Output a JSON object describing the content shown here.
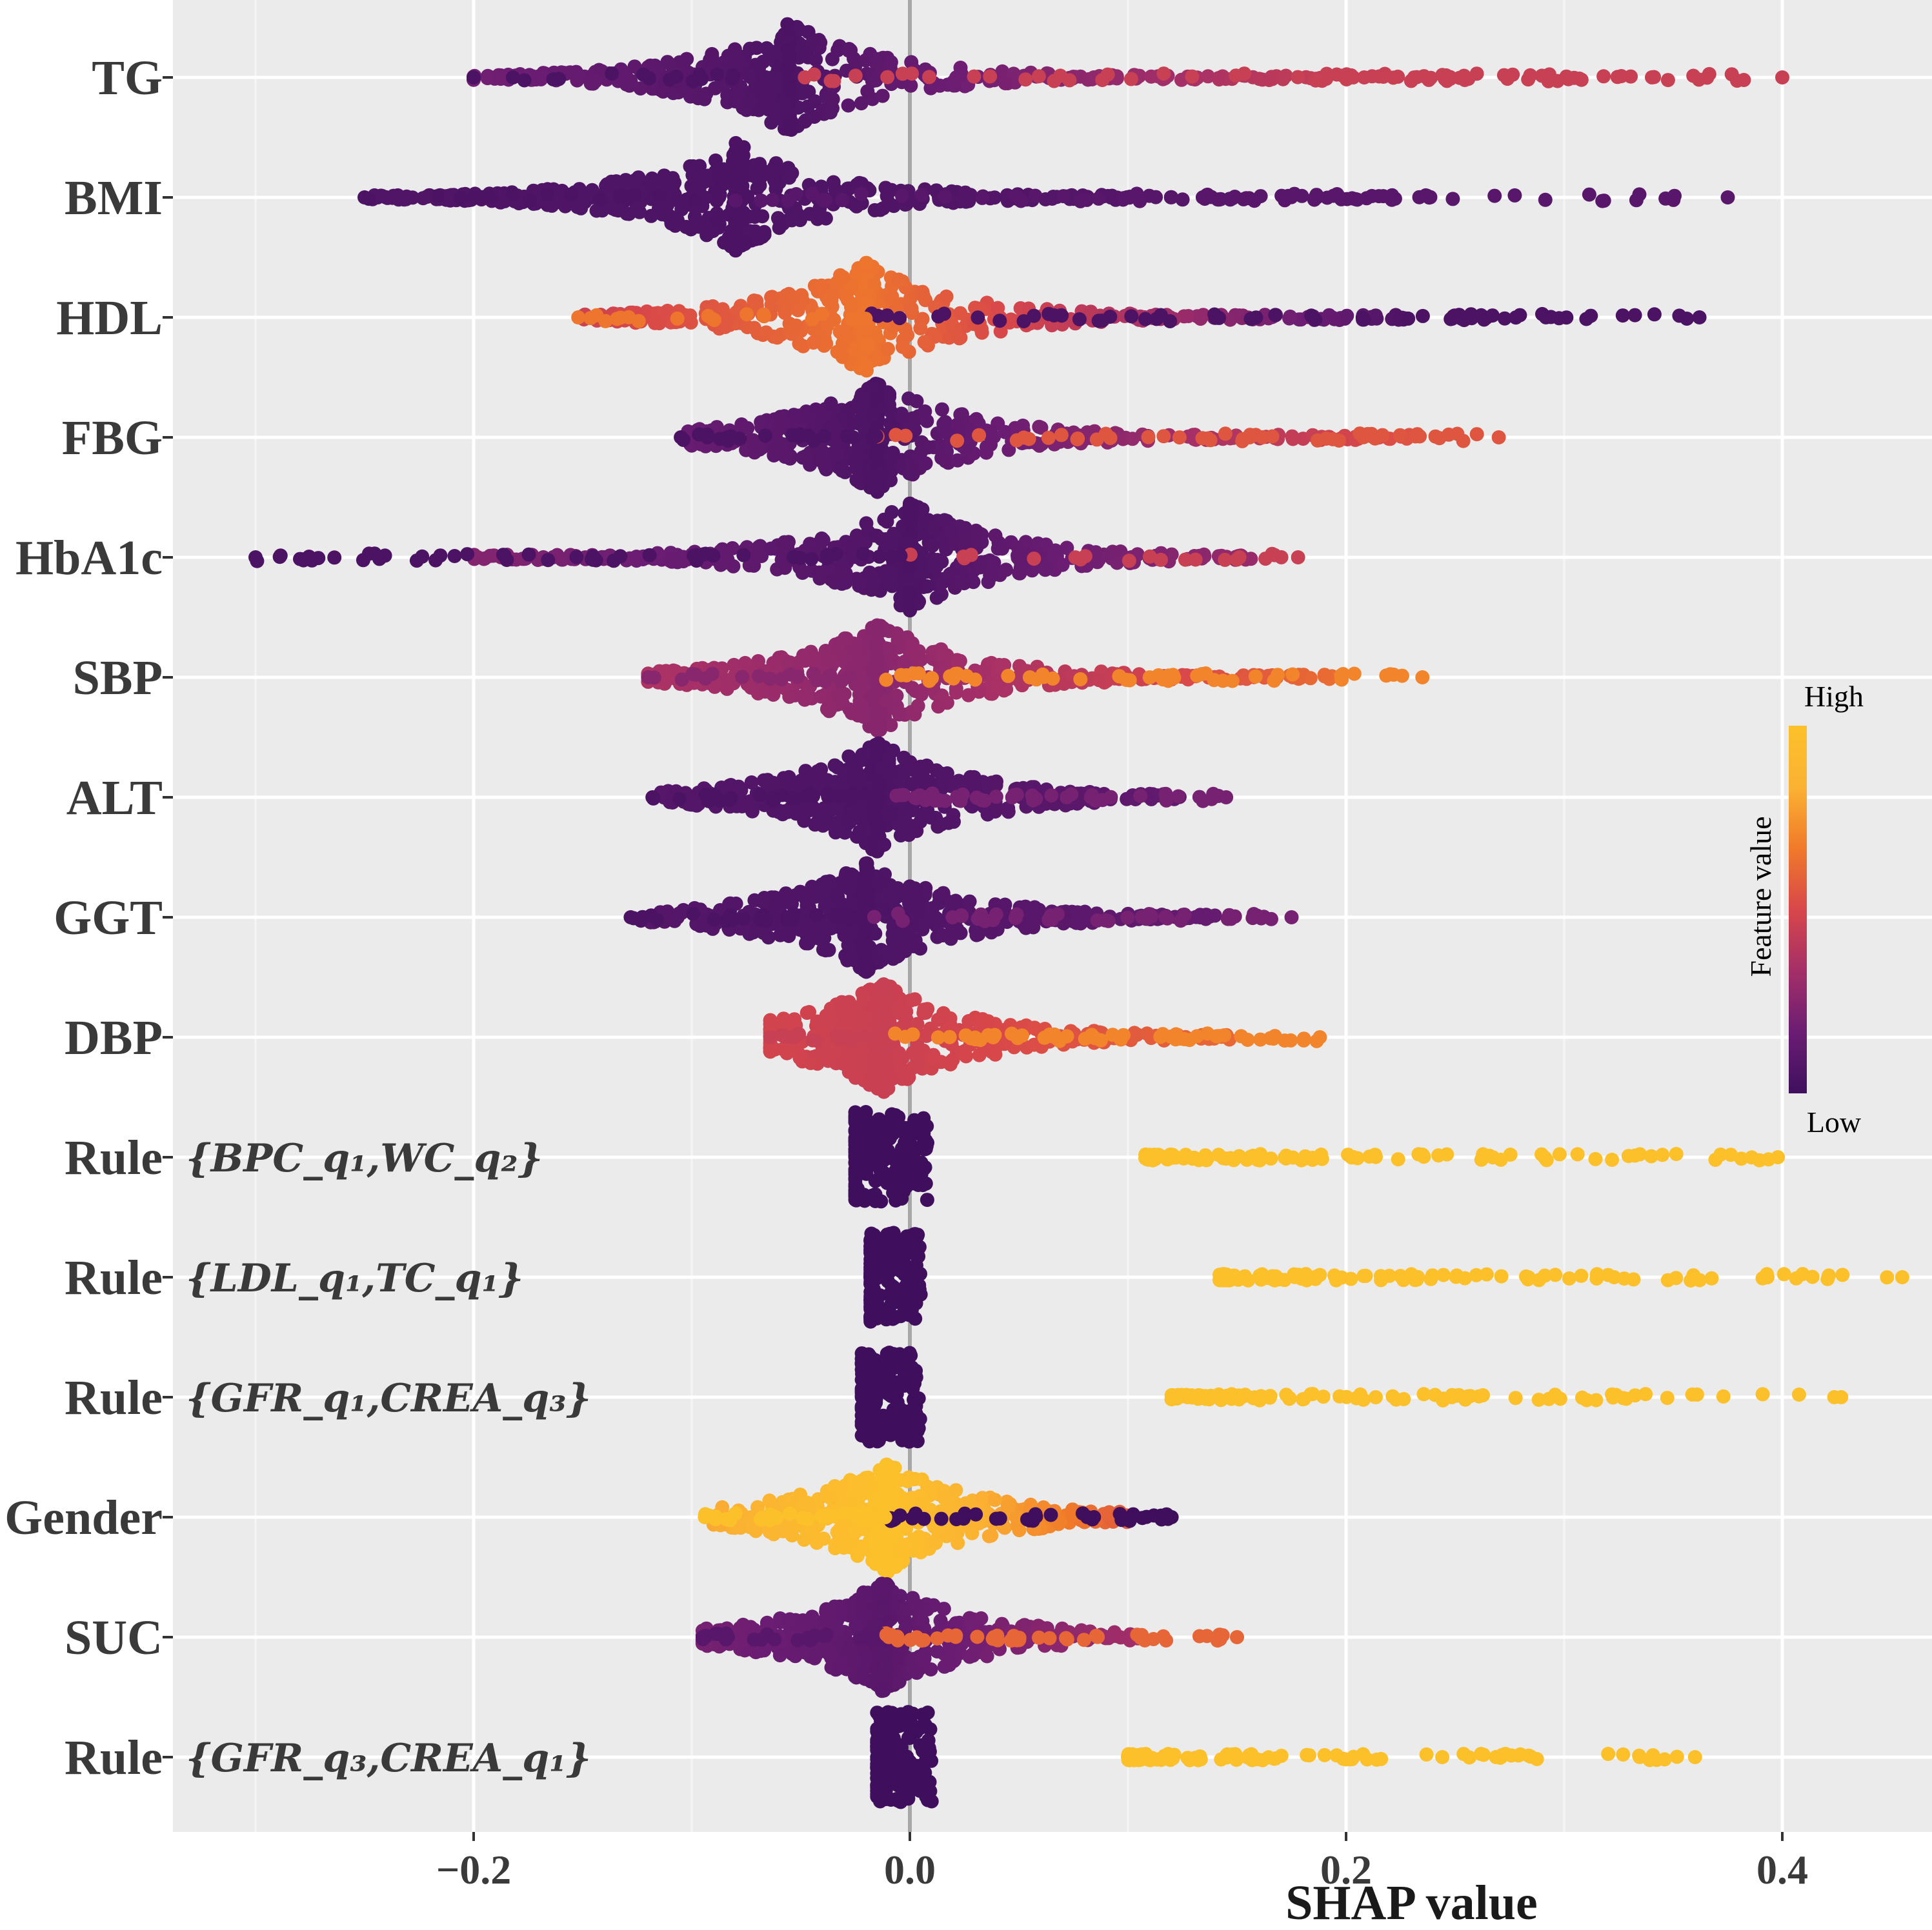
{
  "chart_data": {
    "type": "scatter",
    "subtype": "shap-beeswarm-summary",
    "xlabel": "SHAP value",
    "ylabel": "",
    "xlim": [
      -0.335,
      0.46
    ],
    "x_ticks": [
      -0.2,
      0.0,
      0.2,
      0.4
    ],
    "x_tick_labels": [
      "−0.2",
      "0.0",
      "0.2",
      "0.4"
    ],
    "zero_line": 0.0,
    "grid": true,
    "background": "#ebebeb",
    "legend": {
      "title": "Feature value",
      "high_label": "High",
      "low_label": "Low",
      "placement": "right",
      "colormap": [
        "#3f0f5e",
        "#6b1d73",
        "#a42f68",
        "#d8474a",
        "#f07a2a",
        "#fbb233",
        "#fcc12a"
      ]
    },
    "features": [
      {
        "name": "TG",
        "rule_set": null,
        "min": -0.2,
        "max": 0.4,
        "peak": -0.055,
        "spread_neg": 0.15,
        "spread_pos": 0.4,
        "color_low": 0.05,
        "color_high": 0.45
      },
      {
        "name": "BMI",
        "rule_set": null,
        "min": -0.25,
        "max": 0.375,
        "peak": -0.08,
        "spread_neg": 0.17,
        "spread_pos": 0.32,
        "color_low": 0.05,
        "color_high": 0.1
      },
      {
        "name": "HDL",
        "rule_set": null,
        "min": -0.152,
        "max": 0.362,
        "peak": -0.02,
        "spread_neg": 0.13,
        "spread_pos": 0.3,
        "color_low": 0.65,
        "color_high": 0.05
      },
      {
        "name": "FBG",
        "rule_set": null,
        "min": -0.105,
        "max": 0.27,
        "peak": -0.015,
        "spread_neg": 0.09,
        "spread_pos": 0.25,
        "color_low": 0.05,
        "color_high": 0.55
      },
      {
        "name": "HbA1c",
        "rule_set": null,
        "min": -0.3,
        "max": 0.178,
        "peak": 0.0,
        "spread_neg": 0.2,
        "spread_pos": 0.16,
        "color_low": 0.05,
        "color_high": 0.45
      },
      {
        "name": "SBP",
        "rule_set": null,
        "min": -0.12,
        "max": 0.235,
        "peak": -0.015,
        "spread_neg": 0.11,
        "spread_pos": 0.21,
        "color_low": 0.25,
        "color_high": 0.7
      },
      {
        "name": "ALT",
        "rule_set": null,
        "min": -0.118,
        "max": 0.145,
        "peak": -0.015,
        "spread_neg": 0.1,
        "spread_pos": 0.14,
        "color_low": 0.05,
        "color_high": 0.2
      },
      {
        "name": "GGT",
        "rule_set": null,
        "min": -0.128,
        "max": 0.175,
        "peak": -0.02,
        "spread_neg": 0.1,
        "spread_pos": 0.16,
        "color_low": 0.05,
        "color_high": 0.2
      },
      {
        "name": "DBP",
        "rule_set": null,
        "min": -0.064,
        "max": 0.188,
        "peak": -0.012,
        "spread_neg": 0.06,
        "spread_pos": 0.16,
        "color_low": 0.45,
        "color_high": 0.7
      },
      {
        "name": "Rule",
        "rule_set": "{BPC_q₁,WC_q₂}",
        "min": -0.025,
        "max": 0.398,
        "peak": -0.012,
        "spread_neg": 0.02,
        "spread_pos": 0.01,
        "high_min": 0.108,
        "color_low": 0.0,
        "color_high": 1.0
      },
      {
        "name": "Rule",
        "rule_set": "{LDL_q₁,TC_q₁}",
        "min": -0.018,
        "max": 0.455,
        "peak": -0.01,
        "spread_neg": 0.01,
        "spread_pos": 0.01,
        "high_min": 0.142,
        "color_low": 0.0,
        "color_high": 1.0
      },
      {
        "name": "Rule",
        "rule_set": "{GFR_q₁,CREA_q₃}",
        "min": -0.022,
        "max": 0.427,
        "peak": -0.01,
        "spread_neg": 0.015,
        "spread_pos": 0.01,
        "high_min": 0.12,
        "color_low": 0.0,
        "color_high": 1.0
      },
      {
        "name": "Gender",
        "rule_set": null,
        "min": -0.094,
        "max": 0.12,
        "peak": -0.01,
        "spread_neg": 0.08,
        "spread_pos": 0.11,
        "color_low": 1.0,
        "color_high": 0.0
      },
      {
        "name": "SUC",
        "rule_set": null,
        "min": -0.095,
        "max": 0.15,
        "peak": -0.012,
        "spread_neg": 0.09,
        "spread_pos": 0.12,
        "color_low": 0.1,
        "color_high": 0.6
      },
      {
        "name": "Rule",
        "rule_set": "{GFR_q₃,CREA_q₁}",
        "min": -0.015,
        "max": 0.36,
        "peak": -0.005,
        "spread_neg": 0.01,
        "spread_pos": 0.01,
        "high_min": 0.1,
        "color_low": 0.0,
        "color_high": 1.0
      }
    ]
  }
}
